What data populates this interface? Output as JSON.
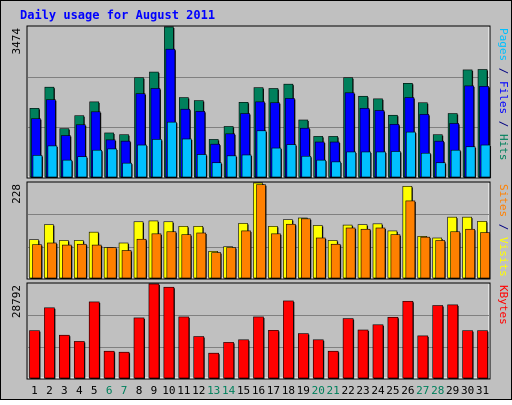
{
  "chart_data": {
    "title": "Daily usage for August 2011",
    "type": "bar",
    "categories": [
      "1",
      "2",
      "3",
      "4",
      "5",
      "6",
      "7",
      "8",
      "9",
      "10",
      "11",
      "12",
      "13",
      "14",
      "15",
      "16",
      "17",
      "18",
      "19",
      "20",
      "21",
      "22",
      "23",
      "24",
      "25",
      "26",
      "27",
      "28",
      "29",
      "30",
      "31"
    ],
    "weekend_days": [
      "6",
      "7",
      "13",
      "14",
      "20",
      "21",
      "27",
      "28"
    ],
    "panels": [
      {
        "label_parts": [
          {
            "text": "Pages",
            "color": "#00c0ff"
          },
          {
            "text": " / ",
            "color": "#000080"
          },
          {
            "text": "Files",
            "color": "#0000ff"
          },
          {
            "text": " / ",
            "color": "#000080"
          },
          {
            "text": "Hits",
            "color": "#00805c"
          }
        ],
        "ymax_label": "3474",
        "ymax": 3474,
        "series": [
          {
            "name": "Hits",
            "color": "#00805c",
            "values": [
              1590,
              2080,
              1120,
              1420,
              1740,
              1020,
              980,
              2300,
              2430,
              3474,
              1840,
              1770,
              870,
              1170,
              1730,
              2070,
              2050,
              2150,
              1320,
              940,
              940,
              2300,
              1870,
              1810,
              1430,
              2170,
              1720,
              980,
              1470,
              2480,
              2490
            ]
          },
          {
            "name": "Files",
            "color": "#0000ff",
            "values": [
              1350,
              1790,
              960,
              1210,
              1510,
              860,
              830,
              1930,
              2050,
              2960,
              1570,
              1520,
              760,
              1000,
              1470,
              1740,
              1720,
              1820,
              1130,
              810,
              810,
              1950,
              1590,
              1540,
              1220,
              1840,
              1450,
              830,
              1240,
              2110,
              2100
            ]
          },
          {
            "name": "Pages",
            "color": "#00c0ff",
            "values": [
              500,
              720,
              390,
              470,
              620,
              650,
              320,
              740,
              870,
              1270,
              880,
              520,
              330,
              490,
              510,
              1070,
              670,
              750,
              480,
              390,
              350,
              580,
              580,
              580,
              590,
              1040,
              550,
              330,
              620,
              700,
              740
            ]
          }
        ]
      },
      {
        "label_parts": [
          {
            "text": "Sites",
            "color": "#ff8000"
          },
          {
            "text": " / ",
            "color": "#000080"
          },
          {
            "text": "Visits",
            "color": "#ffff00"
          }
        ],
        "ymax_label": "228",
        "ymax": 228,
        "series": [
          {
            "name": "Visits",
            "color": "#ffff00",
            "values": [
              92,
              128,
              90,
              90,
              110,
              73,
              84,
              135,
              137,
              135,
              124,
              124,
              64,
              75,
              131,
              228,
              124,
              140,
              144,
              126,
              90,
              127,
              128,
              130,
              113,
              220,
              100,
              96,
              146,
              146,
              136
            ]
          },
          {
            "name": "Sites",
            "color": "#ff8000",
            "values": [
              80,
              84,
              79,
              81,
              79,
              73,
              66,
              93,
              106,
              111,
              104,
              108,
              61,
              73,
              113,
              224,
              106,
              129,
              142,
              96,
              81,
              120,
              117,
              120,
              104,
              185,
              98,
              90,
              111,
              117,
              109
            ]
          }
        ]
      },
      {
        "label_parts": [
          {
            "text": "KBytes",
            "color": "#ff0000"
          }
        ],
        "ymax_label": "28792",
        "ymax": 28792,
        "series": [
          {
            "name": "KBytes",
            "color": "#ff0000",
            "values": [
              14500,
              21500,
              13100,
              11200,
              23300,
              8200,
              7900,
              18400,
              28792,
              27800,
              18700,
              12700,
              7600,
              10900,
              11700,
              18700,
              14600,
              23600,
              13600,
              11700,
              8200,
              18200,
              14700,
              16300,
              18600,
              23500,
              12900,
              22200,
              22400,
              14500,
              14500
            ]
          }
        ]
      }
    ]
  }
}
